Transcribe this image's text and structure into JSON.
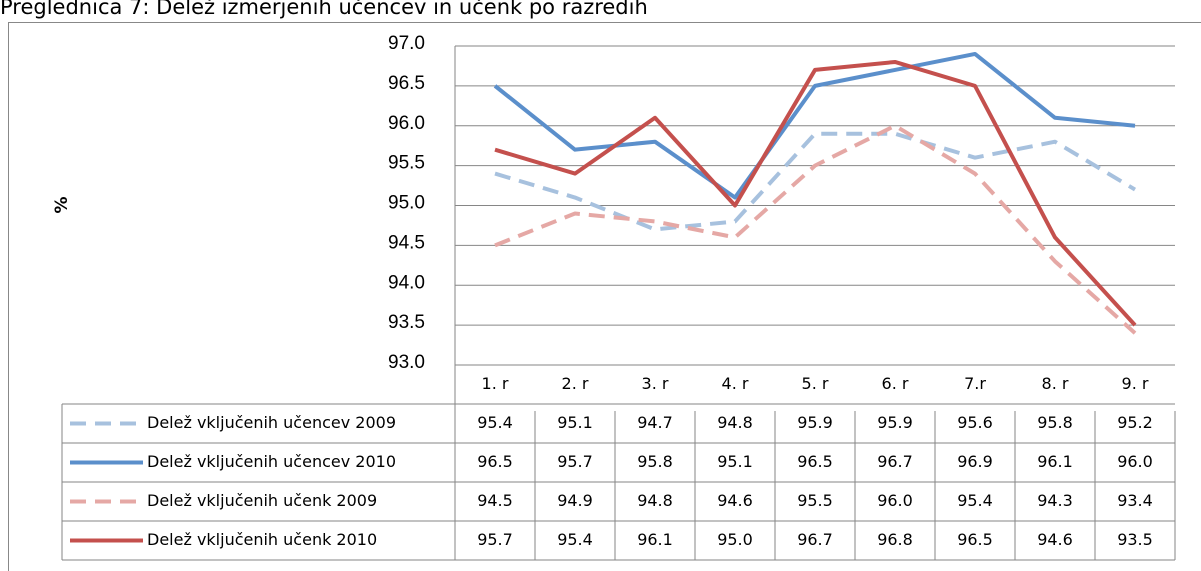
{
  "chart_data": {
    "type": "line",
    "title": "Preglednica 7: Delež izmerjenih učencev in učenk po razredih",
    "y_label": "%",
    "categories": [
      "1. r",
      "2. r",
      "3. r",
      "4. r",
      "5. r",
      "6. r",
      "7.r",
      "8. r",
      "9. r"
    ],
    "ylim": [
      93,
      97
    ],
    "yticks": [
      {
        "value": 93,
        "label": "93.0"
      },
      {
        "value": 93.5,
        "label": "93.5"
      },
      {
        "value": 94,
        "label": "94.0"
      },
      {
        "value": 94.5,
        "label": "94.5"
      },
      {
        "value": 95,
        "label": "95.0"
      },
      {
        "value": 95.5,
        "label": "95.5"
      },
      {
        "value": 96,
        "label": "96.0"
      },
      {
        "value": 96.5,
        "label": "96.5"
      },
      {
        "value": 97,
        "label": "97.0"
      }
    ],
    "grid": true,
    "series": [
      {
        "name": "Delež vključenih učencev 2009",
        "color": "#a7c1de",
        "dashed": true,
        "values": [
          95.4,
          95.1,
          94.7,
          94.8,
          95.9,
          95.9,
          95.6,
          95.8,
          95.2
        ],
        "value_labels": [
          "95.4",
          "95.1",
          "94.7",
          "94.8",
          "95.9",
          "95.9",
          "95.6",
          "95.8",
          "95.2"
        ]
      },
      {
        "name": "Delež vključenih učencev 2010",
        "color": "#5b8fcb",
        "dashed": false,
        "values": [
          96.5,
          95.7,
          95.8,
          95.1,
          96.5,
          96.7,
          96.9,
          96.1,
          96.0
        ],
        "value_labels": [
          "96.5",
          "95.7",
          "95.8",
          "95.1",
          "96.5",
          "96.7",
          "96.9",
          "96.1",
          "96.0"
        ]
      },
      {
        "name": "Delež vključenih učenk 2009",
        "color": "#e5a8a5",
        "dashed": true,
        "values": [
          94.5,
          94.9,
          94.8,
          94.6,
          95.5,
          96.0,
          95.4,
          94.3,
          93.4
        ],
        "value_labels": [
          "94.5",
          "94.9",
          "94.8",
          "94.6",
          "95.5",
          "96.0",
          "95.4",
          "94.3",
          "93.4"
        ]
      },
      {
        "name": "Delež vključenih učenk 2010",
        "color": "#c4504d",
        "dashed": false,
        "values": [
          95.7,
          95.4,
          96.1,
          95.0,
          96.7,
          96.8,
          96.5,
          94.6,
          93.5
        ],
        "value_labels": [
          "95.7",
          "95.4",
          "96.1",
          "95.0",
          "96.7",
          "96.8",
          "96.5",
          "94.6",
          "93.5"
        ]
      }
    ]
  }
}
